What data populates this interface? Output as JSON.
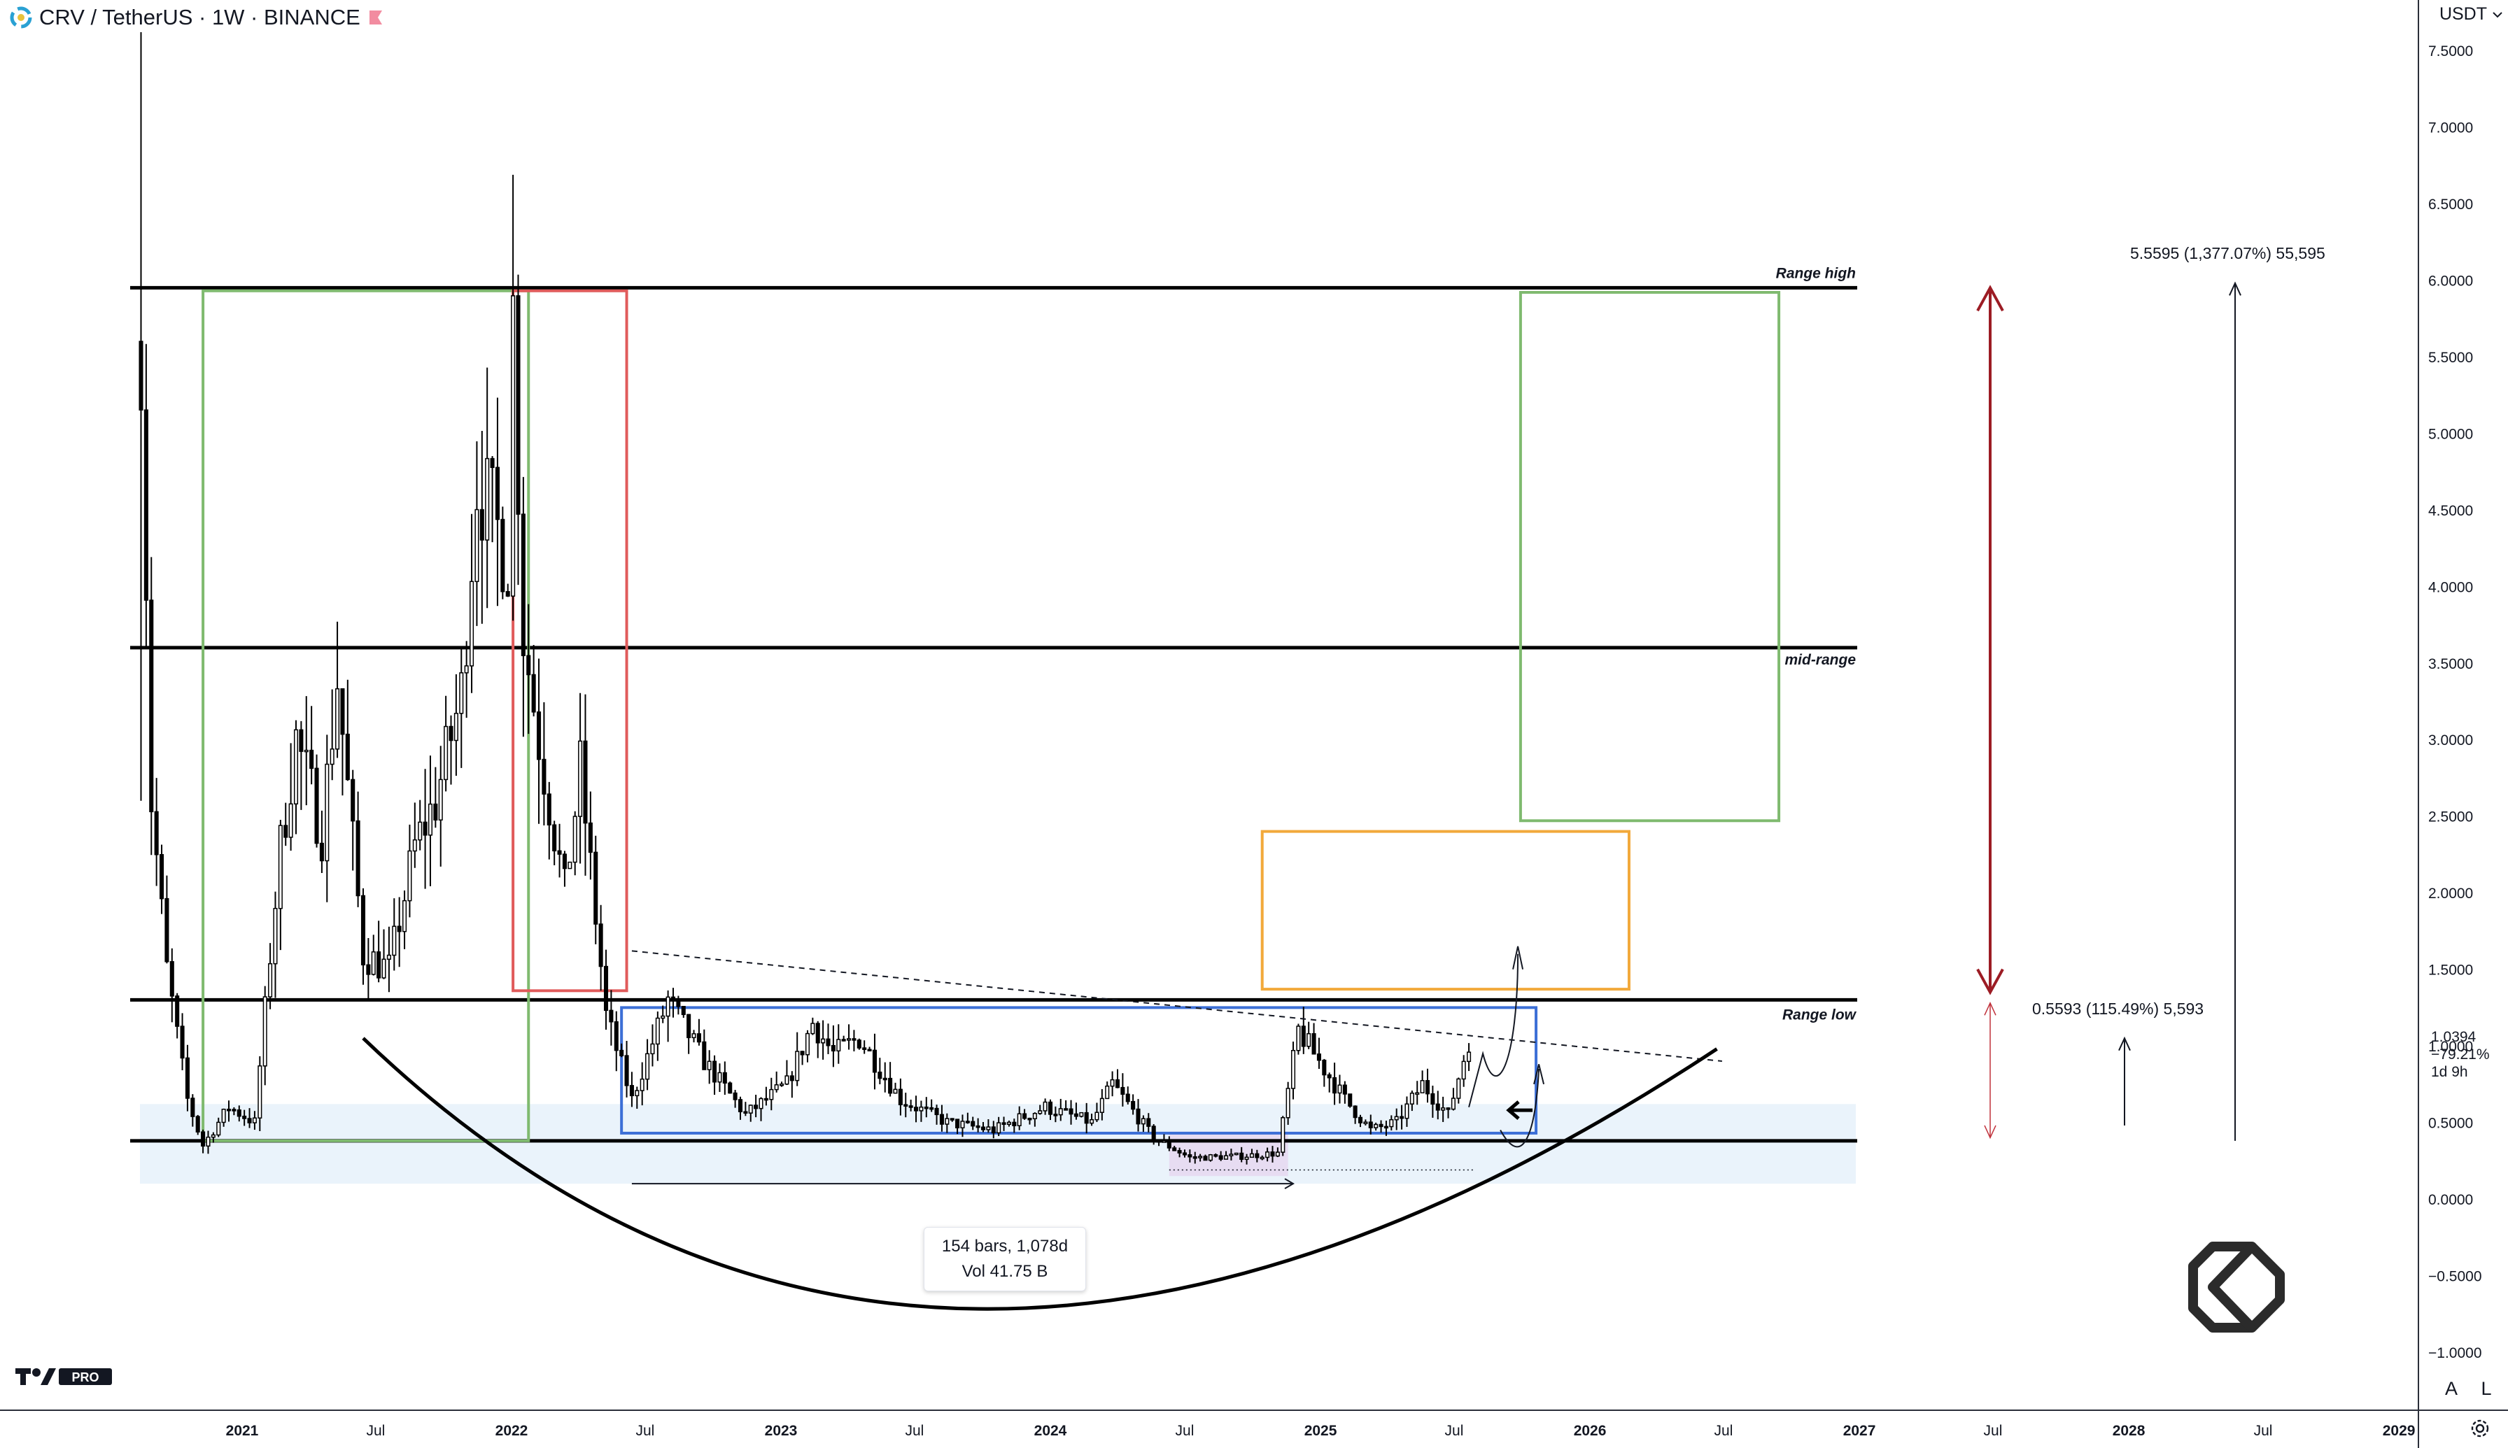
{
  "header": {
    "symbol_text": "CRV / TetherUS · 1W · BINANCE",
    "currency_button": "USDT"
  },
  "bottom_toolbar": {
    "auto_label": "A",
    "log_label": "L"
  },
  "measure_box": {
    "bars_text": "154 bars, 1,078d",
    "volume_text": "Vol 41.75 B"
  },
  "price_label": {
    "price": "1.0394",
    "change": "−79.21%",
    "countdown": "1d 9h"
  },
  "colors": {
    "candle": "#000000",
    "range_line": "#000000",
    "green_box": "#7fba6f",
    "red_box": "#e05b5b",
    "blue_box": "#3c6fd6",
    "orange_box": "#f2a93b",
    "dark_red_arrow": "#9c1c24",
    "red_thin_arrow": "#c0303a",
    "light_blue_zone": "#e3effa",
    "purple_zone": "#e6d6f0"
  },
  "chart_data": {
    "type": "candlestick",
    "symbol": "CRV / TetherUS",
    "interval": "1W",
    "exchange": "BINANCE",
    "y_axis": {
      "ylim": [
        -1.15,
        7.65
      ],
      "ticks": [
        "7.5000",
        "7.0000",
        "6.5000",
        "6.0000",
        "5.5000",
        "5.0000",
        "4.5000",
        "4.0000",
        "3.5000",
        "3.0000",
        "2.5000",
        "2.0000",
        "1.5000",
        "1.0000",
        "0.5000",
        "0.0000",
        "−0.5000",
        "−1.0000"
      ],
      "tick_values": [
        7.5,
        7.0,
        6.5,
        6.0,
        5.5,
        5.0,
        4.5,
        4.0,
        3.5,
        3.0,
        2.5,
        2.0,
        1.5,
        1.0,
        0.5,
        0.0,
        -0.5,
        -1.0
      ]
    },
    "x_axis": {
      "xlim": [
        "2020-08-10",
        "2029-01-20"
      ],
      "ticks": [
        {
          "label": "2021",
          "date": "2021-01-01",
          "bold": true
        },
        {
          "label": "Jul",
          "date": "2021-07-01",
          "bold": false
        },
        {
          "label": "2022",
          "date": "2022-01-01",
          "bold": true
        },
        {
          "label": "Jul",
          "date": "2022-07-01",
          "bold": false
        },
        {
          "label": "2023",
          "date": "2023-01-01",
          "bold": true
        },
        {
          "label": "Jul",
          "date": "2023-07-01",
          "bold": false
        },
        {
          "label": "2024",
          "date": "2024-01-01",
          "bold": true
        },
        {
          "label": "Jul",
          "date": "2024-07-01",
          "bold": false
        },
        {
          "label": "2025",
          "date": "2025-01-01",
          "bold": true
        },
        {
          "label": "Jul",
          "date": "2025-07-01",
          "bold": false
        },
        {
          "label": "2026",
          "date": "2026-01-01",
          "bold": true
        },
        {
          "label": "Jul",
          "date": "2026-07-01",
          "bold": false
        },
        {
          "label": "2027",
          "date": "2027-01-01",
          "bold": true
        },
        {
          "label": "Jul",
          "date": "2027-07-01",
          "bold": false
        },
        {
          "label": "2028",
          "date": "2028-01-01",
          "bold": true
        },
        {
          "label": "Jul",
          "date": "2028-07-01",
          "bold": false
        },
        {
          "label": "2029",
          "date": "2029-01-01",
          "bold": true
        }
      ]
    },
    "price_path": [
      {
        "date": "2020-08-17",
        "price": 5.6
      },
      {
        "date": "2020-08-31",
        "price": 2.6
      },
      {
        "date": "2020-09-21",
        "price": 1.5
      },
      {
        "date": "2020-10-19",
        "price": 0.65
      },
      {
        "date": "2020-11-09",
        "price": 0.35
      },
      {
        "date": "2020-12-14",
        "price": 0.6
      },
      {
        "date": "2021-01-18",
        "price": 0.5
      },
      {
        "date": "2021-02-08",
        "price": 1.6
      },
      {
        "date": "2021-02-22",
        "price": 2.3
      },
      {
        "date": "2021-03-15",
        "price": 3.0
      },
      {
        "date": "2021-04-19",
        "price": 2.4
      },
      {
        "date": "2021-05-10",
        "price": 3.4
      },
      {
        "date": "2021-06-14",
        "price": 1.6
      },
      {
        "date": "2021-07-19",
        "price": 1.5
      },
      {
        "date": "2021-08-23",
        "price": 2.3
      },
      {
        "date": "2021-09-20",
        "price": 2.6
      },
      {
        "date": "2021-10-25",
        "price": 3.3
      },
      {
        "date": "2021-11-15",
        "price": 4.7
      },
      {
        "date": "2021-12-27",
        "price": 4.2
      },
      {
        "date": "2022-01-03",
        "price": 5.8
      },
      {
        "date": "2022-01-17",
        "price": 3.7
      },
      {
        "date": "2022-02-07",
        "price": 3.0
      },
      {
        "date": "2022-03-14",
        "price": 2.0
      },
      {
        "date": "2022-04-04",
        "price": 2.8
      },
      {
        "date": "2022-05-09",
        "price": 1.2
      },
      {
        "date": "2022-06-13",
        "price": 0.65
      },
      {
        "date": "2022-08-01",
        "price": 1.3
      },
      {
        "date": "2022-09-19",
        "price": 0.9
      },
      {
        "date": "2022-11-14",
        "price": 0.55
      },
      {
        "date": "2023-01-09",
        "price": 0.75
      },
      {
        "date": "2023-02-13",
        "price": 1.15
      },
      {
        "date": "2023-03-13",
        "price": 0.95
      },
      {
        "date": "2023-04-17",
        "price": 1.05
      },
      {
        "date": "2023-06-12",
        "price": 0.65
      },
      {
        "date": "2023-08-14",
        "price": 0.5
      },
      {
        "date": "2023-10-16",
        "price": 0.45
      },
      {
        "date": "2023-12-25",
        "price": 0.6
      },
      {
        "date": "2024-02-26",
        "price": 0.5
      },
      {
        "date": "2024-03-25",
        "price": 0.75
      },
      {
        "date": "2024-05-20",
        "price": 0.4
      },
      {
        "date": "2024-07-08",
        "price": 0.27
      },
      {
        "date": "2024-09-16",
        "price": 0.28
      },
      {
        "date": "2024-11-04",
        "price": 0.3
      },
      {
        "date": "2024-12-02",
        "price": 1.1
      },
      {
        "date": "2024-12-23",
        "price": 0.95
      },
      {
        "date": "2025-02-03",
        "price": 0.65
      },
      {
        "date": "2025-03-10",
        "price": 0.45
      },
      {
        "date": "2025-04-14",
        "price": 0.5
      },
      {
        "date": "2025-05-19",
        "price": 0.75
      },
      {
        "date": "2025-06-23",
        "price": 0.55
      },
      {
        "date": "2025-07-21",
        "price": 1.04
      }
    ],
    "horizontal_levels": [
      {
        "label": "Range high",
        "price": 5.95
      },
      {
        "label": "mid-range",
        "price": 3.6
      },
      {
        "label": "Range low",
        "price": 1.3
      },
      {
        "label": "",
        "price": 0.38
      }
    ],
    "annotations": {
      "upper_measure": "5.5595 (1,377.07%) 55,595",
      "lower_measure": "0.5593 (115.49%) 5,593"
    }
  }
}
